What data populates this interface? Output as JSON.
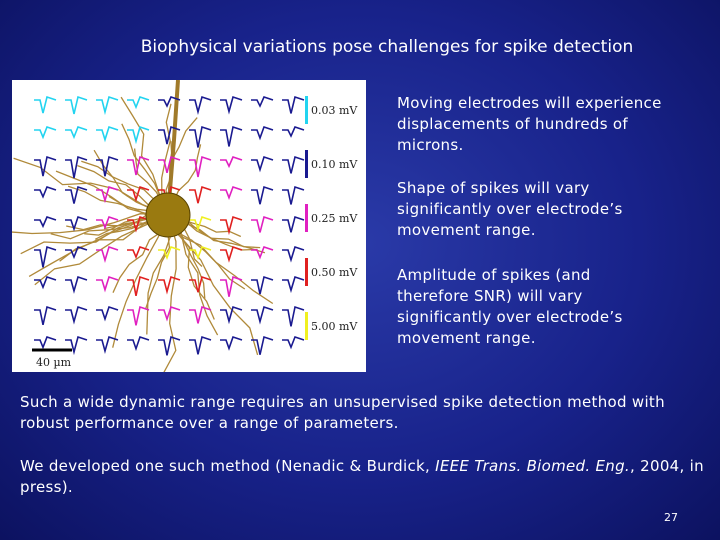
{
  "title": "Biophysical variations pose challenges for spike detection",
  "figure": {
    "scale_labels": [
      "0.03 mV",
      "0.10 mV",
      "0.25 mV",
      "0.50 mV",
      "5.00 mV"
    ],
    "scale_bar": "40 µm"
  },
  "bullets": [
    "Moving electrodes will experience displacements of hundreds of microns.",
    "Shape of spikes will vary significantly over electrode’s movement range.",
    "Amplitude of spikes (and therefore SNR) will vary significantly over electrode’s movement range."
  ],
  "paragraphs": [
    {
      "segments": [
        "Such a wide dynamic range requires an unsupervised spike detection method with robust performance over a range of parameters."
      ]
    },
    {
      "segments": [
        "We developed one such method (Nenadic & Burdick, ",
        "IEEE Trans. Biomed. Eng.",
        ", 2004, in press)."
      ]
    }
  ],
  "page_number": "27"
}
